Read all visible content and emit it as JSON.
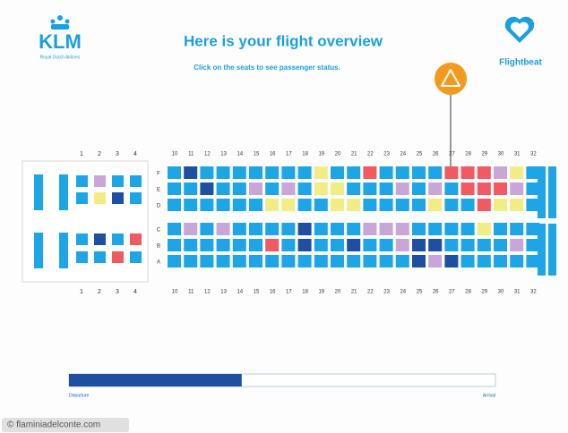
{
  "header": {
    "logo": "KLM",
    "logo_tagline": "Royal Dutch Airlines",
    "title": "Here is your flight overview",
    "subtitle": "Click on the seats to see passenger status.",
    "app_name": "Flightbeat"
  },
  "seat_colors": {
    "b": "#1ea5e6",
    "d": "#1f4fa0",
    "p": "#c9a6d8",
    "y": "#f2ec86",
    "r": "#ef5a63"
  },
  "business": {
    "columns": [
      "1",
      "2",
      "3",
      "4"
    ],
    "rows": [
      "bpbb",
      "bydb",
      "bdbr",
      "bbrb"
    ]
  },
  "economy": {
    "columns": [
      "10",
      "11",
      "12",
      "13",
      "14",
      "15",
      "16",
      "17",
      "18",
      "19",
      "20",
      "21",
      "22",
      "23",
      "24",
      "25",
      "26",
      "27",
      "28",
      "29",
      "30",
      "31",
      "32"
    ],
    "rows": [
      {
        "label": "F",
        "seats": "bdbbbbbbbybbrbbbbrrrpyb"
      },
      {
        "label": "E",
        "seats": "bbdbbpbpbyybbbpbpbrrrpb"
      },
      {
        "label": "D",
        "seats": "bbbbbbyybbyybbbbybbryyb"
      },
      {
        "label": "C",
        "seats": "bpbpbbbbdbbbpppbbbbybbb"
      },
      {
        "label": "B",
        "seats": "bbbbbbrbdbbdbbpddbbbbpb"
      },
      {
        "label": "A",
        "seats": "bbbbbbbbbbbbbbbdpdbbbbb"
      }
    ]
  },
  "progress": {
    "value": 40.5,
    "start_label": "Departure",
    "end_label": "Arrival"
  },
  "watermark": "© flaminiadelconte.com"
}
